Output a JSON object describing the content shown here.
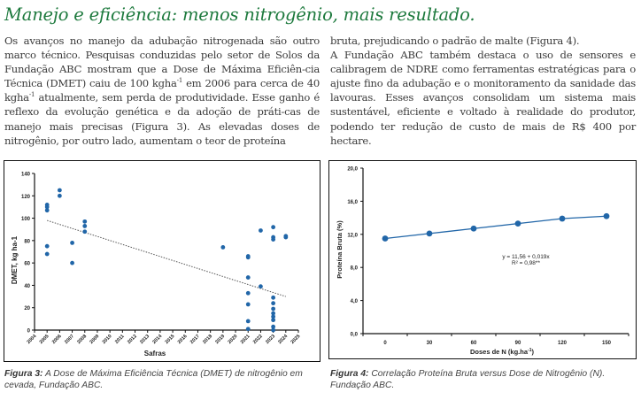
{
  "title": "Manejo e eficiência: menos nitrogênio, mais resultado.",
  "left_column": {
    "p1_a": "Os avanços no manejo da adubação nitrogenada são outro marco técnico. Pesquisas conduzidas pelo setor de Solos da Fundação ABC mostram que a Dose de Máxima Eficiên-cia Técnica (DMET) caiu de 100 kgha",
    "p1_sup1": "-1",
    "p1_b": " em 2006 para cerca de 40 kgha",
    "p1_sup2": "-1",
    "p1_c": " atualmente, sem perda de produtividade. Esse ganho é reflexo da evolução genética e da adoção de práti-cas de manejo mais precisas (Figura 3). As elevadas doses de nitrogênio, por outro lado, aumentam o teor de proteína"
  },
  "right_column": {
    "p1": "bruta, prejudicando o padrão de malte (Figura 4).",
    "p2": "A Fundação ABC também destaca o uso de sensores e calibragem de NDRE como ferramentas estratégicas para o ajuste fino da adubação e o monitoramento da sanidade das lavouras. Esses avanços consolidam um sistema mais sustentável, eficiente e voltado à realidade do produtor, podendo ter redução de custo de mais de R$ 400 por hectare."
  },
  "captions": {
    "fig3_label": "Figura 3:",
    "fig3_text": " A Dose de Máxima Eficiência Técnica (DMET) de nitrogênio em cevada, Fundação ABC.",
    "fig4_label": "Figura 4:",
    "fig4_text": " Correlação Proteína Bruta versus Dose de Nitrogênio (N). Fundação ABC."
  },
  "colors": {
    "title": "#1e7a3e",
    "points": "#2166a8",
    "trend": "#555555"
  },
  "chart_data": [
    {
      "type": "scatter",
      "title": "",
      "xlabel": "Safras",
      "ylabel": "DMET, kg ha-1",
      "xlim": [
        2004,
        2025
      ],
      "ylim": [
        0,
        140
      ],
      "xticks": [
        "2004",
        "2005",
        "2006",
        "2007",
        "2008",
        "2009",
        "2010",
        "2011",
        "2012",
        "2013",
        "2014",
        "2015",
        "2016",
        "2017",
        "2018",
        "2019",
        "2020",
        "2021",
        "2022",
        "2023",
        "2024",
        "2025"
      ],
      "yticks": [
        "0",
        "20",
        "40",
        "60",
        "80",
        "100",
        "120",
        "140"
      ],
      "points": [
        [
          2005,
          112
        ],
        [
          2005,
          110
        ],
        [
          2005,
          107
        ],
        [
          2005,
          75
        ],
        [
          2005,
          68
        ],
        [
          2006,
          125
        ],
        [
          2006,
          120
        ],
        [
          2007,
          78
        ],
        [
          2007,
          60
        ],
        [
          2008,
          97
        ],
        [
          2008,
          93
        ],
        [
          2008,
          88
        ],
        [
          2019,
          74
        ],
        [
          2021,
          66
        ],
        [
          2021,
          65
        ],
        [
          2021,
          47
        ],
        [
          2021,
          33
        ],
        [
          2021,
          23
        ],
        [
          2021,
          8
        ],
        [
          2021,
          1
        ],
        [
          2022,
          89
        ],
        [
          2022,
          39
        ],
        [
          2023,
          92
        ],
        [
          2023,
          83
        ],
        [
          2023,
          81
        ],
        [
          2023,
          29
        ],
        [
          2023,
          24
        ],
        [
          2023,
          19
        ],
        [
          2023,
          15
        ],
        [
          2023,
          12
        ],
        [
          2023,
          9
        ],
        [
          2023,
          3
        ],
        [
          2023,
          0
        ],
        [
          2024,
          84
        ],
        [
          2024,
          83
        ]
      ],
      "trendline": {
        "x": [
          2005,
          2024
        ],
        "y": [
          98,
          30
        ],
        "style": "dotted"
      },
      "grid": false
    },
    {
      "type": "line",
      "title": "",
      "xlabel": "Doses de N (kg.ha",
      "xlabel_sup": "-1",
      "xlabel_end": ")",
      "ylabel": "Proteína Bruta (%)",
      "categories": [
        "0",
        "30",
        "60",
        "90",
        "120",
        "150"
      ],
      "x": [
        0,
        30,
        60,
        90,
        120,
        150
      ],
      "values": [
        11.5,
        12.1,
        12.7,
        13.3,
        13.9,
        14.2
      ],
      "ylim": [
        0,
        20
      ],
      "yticks": [
        "0,0",
        "4,0",
        "8,0",
        "12,0",
        "16,0",
        "20,0"
      ],
      "equation": "y = 11,56 + 0,019x",
      "r2_label": "R² = 0,98**",
      "grid": false
    }
  ]
}
